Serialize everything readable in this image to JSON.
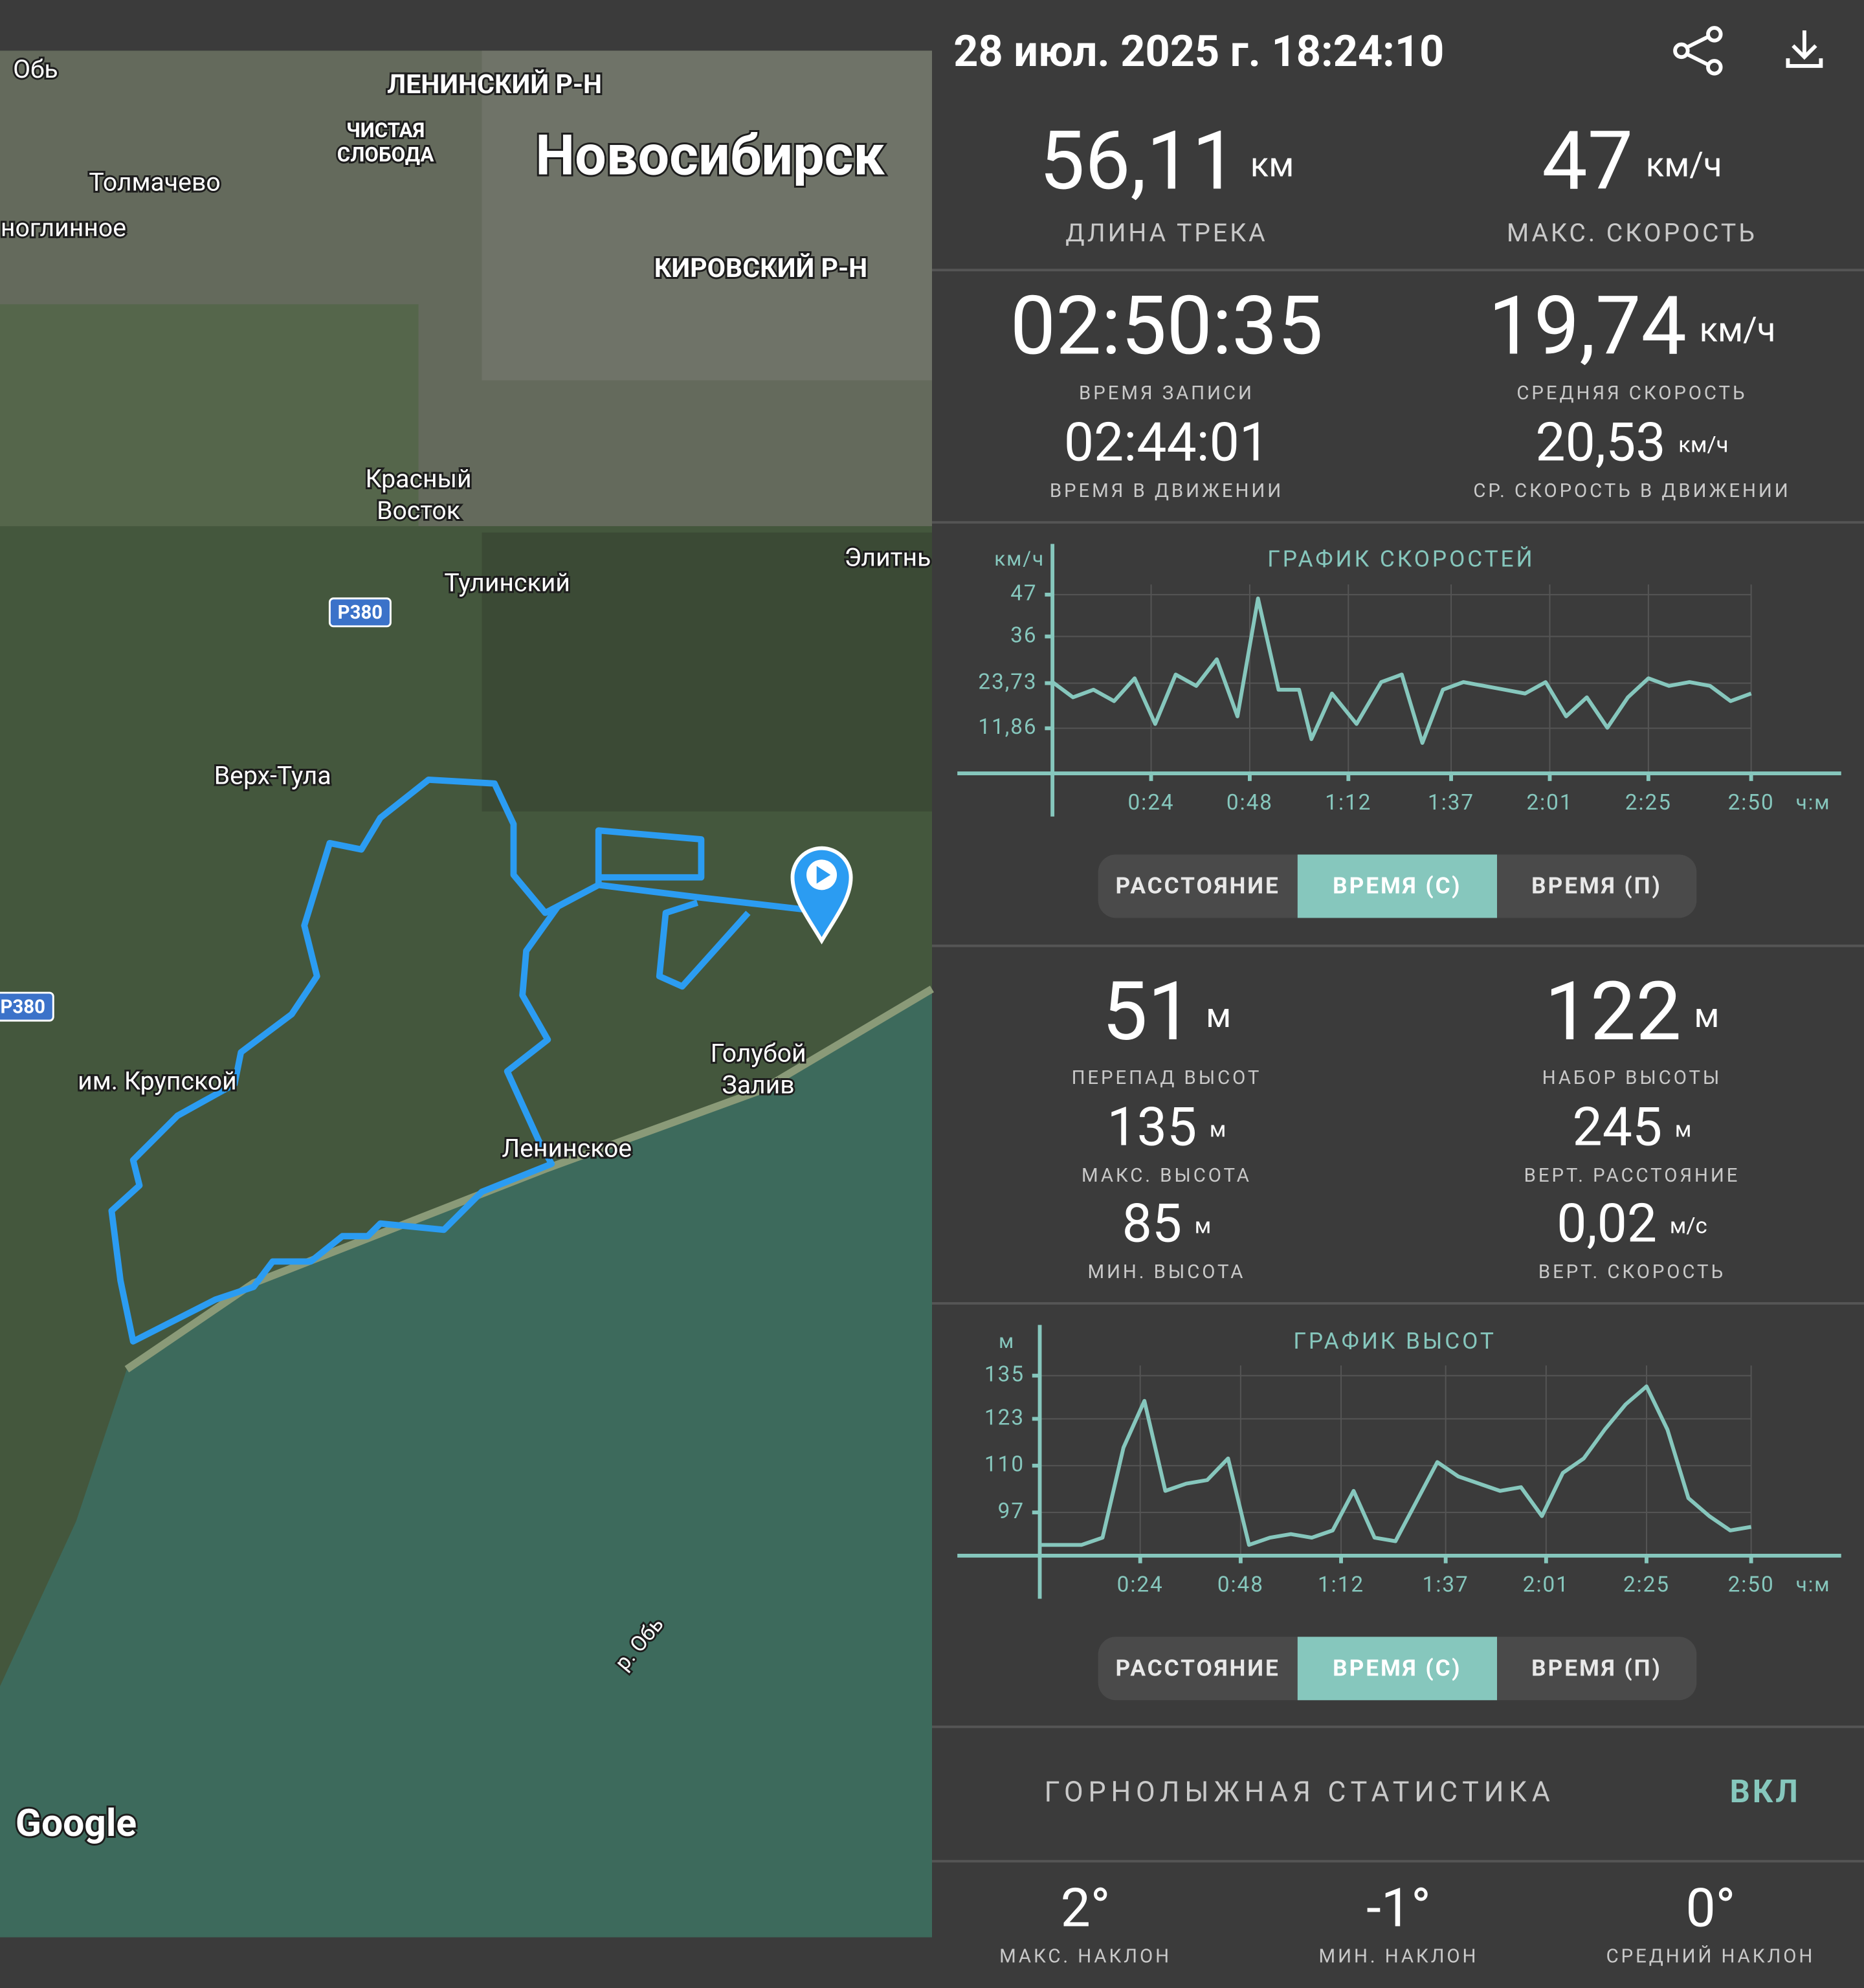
{
  "header": {
    "datetime": "28 июл. 2025 г. 18:24:10"
  },
  "map": {
    "labels": [
      "Обь",
      "ЛЕНИНСКИЙ Р-Н",
      "ЧИСТАЯ",
      "СЛОБОДА",
      "Новосибирск",
      "Толмачево",
      "ноглинное",
      "КИРОВСКИЙ Р-Н",
      "Красный",
      "Восток",
      "Тулинский",
      "Элитнь",
      "Р380",
      "Верх-Тула",
      "Р380",
      "им. Крупской",
      "Голубой",
      "Залив",
      "Ленинское",
      "р. Обь"
    ],
    "attribution": "Google"
  },
  "summary": [
    {
      "value": "56,11",
      "unit": "км",
      "label": "ДЛИНА ТРЕКА"
    },
    {
      "value": "47",
      "unit": "км/ч",
      "label": "МАКС. СКОРОСТЬ"
    }
  ],
  "time_stats": [
    {
      "value": "02:50:35",
      "label": "ВРЕМЯ ЗАПИСИ"
    },
    {
      "value": "19,74",
      "unit": "км/ч",
      "label": "СРЕДНЯЯ СКОРОСТЬ"
    },
    {
      "value": "02:44:01",
      "label": "ВРЕМЯ В ДВИЖЕНИИ"
    },
    {
      "value": "20,53",
      "unit": "км/ч",
      "label": "СР. СКОРОСТЬ В ДВИЖЕНИИ"
    }
  ],
  "speed_chart": {
    "type": "line",
    "title": "ГРАФИК СКОРОСТЕЙ",
    "y_unit": "км/ч",
    "x_unit": "ч:м",
    "x": [
      0,
      5,
      10,
      15,
      20,
      25,
      30,
      35,
      40,
      45,
      50,
      55,
      60,
      63,
      68,
      74,
      80,
      85,
      90,
      95,
      100,
      105,
      110,
      115,
      120,
      125,
      130,
      135,
      140,
      145,
      150,
      155,
      160,
      165,
      170
    ],
    "series": [
      {
        "color": "#86c7bd",
        "values": [
          24,
          20,
          22,
          19,
          25,
          13,
          26,
          23,
          30,
          15,
          46,
          22,
          22,
          9,
          21,
          13,
          24,
          26,
          8,
          22,
          24,
          23,
          22,
          21,
          24,
          15,
          20,
          12,
          20,
          25,
          23,
          24,
          23,
          19,
          21
        ]
      }
    ],
    "xlim": [
      0,
      170
    ],
    "ylim": [
      0,
      47
    ],
    "xticks": [
      {
        "value": 24,
        "label": "0:24"
      },
      {
        "value": 48,
        "label": "0:48"
      },
      {
        "value": 72,
        "label": "1:12"
      },
      {
        "value": 97,
        "label": "1:37"
      },
      {
        "value": 121,
        "label": "2:01"
      },
      {
        "value": 145,
        "label": "2:25"
      },
      {
        "value": 170,
        "label": "2:50"
      }
    ],
    "yticks": [
      {
        "value": 11.86,
        "label": "11,86"
      },
      {
        "value": 23.73,
        "label": "23,73"
      },
      36,
      47
    ],
    "grid": true
  },
  "speed_toggle": [
    "РАССТОЯНИЕ",
    "ВРЕМЯ (С)",
    "ВРЕМЯ (П)"
  ],
  "elevation_stats": [
    {
      "value": "51",
      "unit": "м",
      "label": "ПЕРЕПАД ВЫСОТ"
    },
    {
      "value": "122",
      "unit": "м",
      "label": "НАБОР ВЫСОТЫ"
    },
    {
      "value": "135",
      "unit": "м",
      "label": "МАКС. ВЫСОТА"
    },
    {
      "value": "245",
      "unit": "м",
      "label": "ВЕРТ. РАССТОЯНИЕ"
    },
    {
      "value": "85",
      "unit": "м",
      "label": "МИН. ВЫСОТА"
    },
    {
      "value": "0,02",
      "unit": "м/с",
      "label": "ВЕРТ. СКОРОСТЬ"
    }
  ],
  "elevation_chart": {
    "type": "line",
    "title": "ГРАФИК ВЫСОТ",
    "y_unit": "м",
    "x_unit": "ч:м",
    "x": [
      0,
      5,
      10,
      15,
      20,
      25,
      30,
      35,
      40,
      45,
      50,
      55,
      60,
      65,
      70,
      75,
      80,
      85,
      90,
      95,
      100,
      105,
      110,
      115,
      120,
      125,
      130,
      135,
      140,
      145,
      150,
      155,
      160,
      165,
      170
    ],
    "series": [
      {
        "color": "#86c7bd",
        "values": [
          88,
          88,
          88,
          90,
          115,
          128,
          103,
          105,
          106,
          112,
          88,
          90,
          91,
          90,
          92,
          103,
          90,
          89,
          100,
          111,
          107,
          105,
          103,
          104,
          96,
          108,
          112,
          120,
          127,
          132,
          120,
          101,
          96,
          92,
          93
        ]
      }
    ],
    "xlim": [
      0,
      170
    ],
    "ylim": [
      85,
      135
    ],
    "xticks": [
      {
        "value": 24,
        "label": "0:24"
      },
      {
        "value": 48,
        "label": "0:48"
      },
      {
        "value": 72,
        "label": "1:12"
      },
      {
        "value": 97,
        "label": "1:37"
      },
      {
        "value": 121,
        "label": "2:01"
      },
      {
        "value": 145,
        "label": "2:25"
      },
      {
        "value": 170,
        "label": "2:50"
      }
    ],
    "yticks": [
      97,
      110,
      123,
      135
    ],
    "grid": true
  },
  "elevation_toggle": [
    "РАССТОЯНИЕ",
    "ВРЕМЯ (С)",
    "ВРЕМЯ (П)"
  ],
  "ski": {
    "title": "ГОРНОЛЫЖНАЯ СТАТИСТИКА",
    "toggle": "ВКЛ",
    "stats": [
      {
        "value": "2°",
        "label": "МАКС. НАКЛОН"
      },
      {
        "value": "-1°",
        "label": "МИН. НАКЛОН"
      },
      {
        "value": "0°",
        "label": "СРЕДНИЙ НАКЛОН"
      }
    ]
  }
}
